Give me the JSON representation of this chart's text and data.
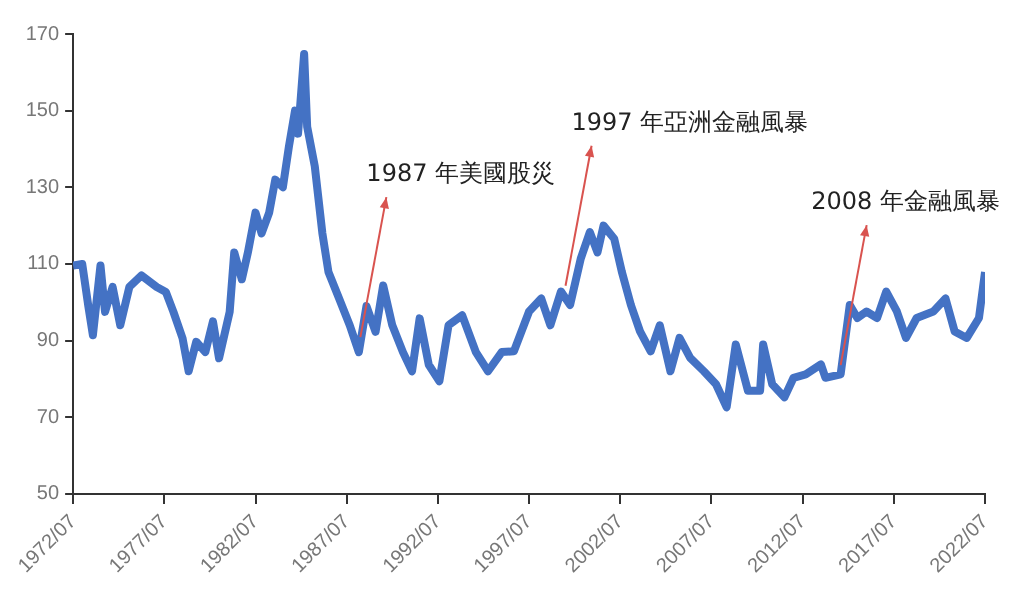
{
  "chart_data": {
    "type": "line",
    "x": [
      "1972-07",
      "1973-01",
      "1973-05",
      "1973-08",
      "1974-01",
      "1974-04",
      "1974-09",
      "1975-02",
      "1975-08",
      "1976-04",
      "1977-02",
      "1977-08",
      "1978-01",
      "1978-07",
      "1978-11",
      "1979-04",
      "1979-10",
      "1980-03",
      "1980-07",
      "1981-02",
      "1981-05",
      "1981-10",
      "1982-02",
      "1982-07",
      "1982-11",
      "1983-04",
      "1983-08",
      "1984-01",
      "1984-05",
      "1984-09",
      "1984-11",
      "1985-03",
      "1985-05",
      "1985-10",
      "1986-03",
      "1986-07",
      "1987-02",
      "1987-09",
      "1988-03",
      "1988-08",
      "1989-02",
      "1989-07",
      "1990-01",
      "1990-08",
      "1991-02",
      "1991-07",
      "1992-01",
      "1992-08",
      "1993-02",
      "1993-11",
      "1994-08",
      "1995-04",
      "1996-01",
      "1996-09",
      "1997-07",
      "1998-03",
      "1998-09",
      "1999-04",
      "1999-10",
      "2000-05",
      "2000-11",
      "2001-04",
      "2001-08",
      "2002-03",
      "2002-08",
      "2003-02",
      "2003-08",
      "2004-03",
      "2004-09",
      "2005-04",
      "2005-10",
      "2006-05",
      "2007-02",
      "2007-10",
      "2008-05",
      "2008-11",
      "2009-07",
      "2010-03",
      "2010-05",
      "2010-11",
      "2011-07",
      "2012-01",
      "2012-09",
      "2013-07",
      "2013-10",
      "2014-08",
      "2015-02",
      "2015-07",
      "2016-01",
      "2016-08",
      "2017-02",
      "2017-09",
      "2018-03",
      "2018-10",
      "2019-09",
      "2020-05",
      "2020-11",
      "2021-07",
      "2022-03",
      "2022-07"
    ],
    "series": [
      {
        "color": "#4472c4",
        "values": [
          109.6,
          110,
          99,
          91.4,
          109.6,
          97.5,
          104,
          94,
          104,
          107,
          104,
          102.7,
          97.5,
          90.6,
          82,
          89.7,
          87,
          95,
          85.4,
          97.5,
          113,
          106,
          113,
          123.4,
          118,
          123.4,
          132,
          130,
          140.7,
          150,
          144,
          164.8,
          145.8,
          135.5,
          118,
          107.9,
          101,
          94,
          87,
          99,
          92.3,
          104.4,
          94,
          87,
          82,
          95.8,
          83.7,
          79.4,
          94,
          96.6,
          87,
          82,
          87,
          87.2,
          97.6,
          101,
          94,
          102.8,
          99.3,
          111.4,
          118.3,
          113,
          120,
          116.6,
          108,
          99.3,
          92.4,
          87.2,
          94,
          82,
          90.7,
          85.5,
          82,
          78.6,
          72.6,
          89,
          76.9,
          76.9,
          89,
          78.6,
          75.2,
          80.3,
          81.2,
          83.8,
          80.3,
          81.2,
          99.3,
          95.9,
          97.6,
          95.9,
          102.8,
          97.6,
          90.7,
          95.9,
          97.6,
          101,
          92.4,
          90.7,
          95.9,
          107.9
        ]
      }
    ],
    "xlim": [
      "1972-07",
      "2022-07"
    ],
    "xticks": [
      {
        "value": "1972-07",
        "label": "1972/07"
      },
      {
        "value": "1977-07",
        "label": "1977/07"
      },
      {
        "value": "1982-07",
        "label": "1982/07"
      },
      {
        "value": "1987-07",
        "label": "1987/07"
      },
      {
        "value": "1992-07",
        "label": "1992/07"
      },
      {
        "value": "1997-07",
        "label": "1997/07"
      },
      {
        "value": "2002-07",
        "label": "2002/07"
      },
      {
        "value": "2007-07",
        "label": "2007/07"
      },
      {
        "value": "2012-07",
        "label": "2012/07"
      },
      {
        "value": "2017-07",
        "label": "2017/07"
      },
      {
        "value": "2022-07",
        "label": "2022/07"
      }
    ],
    "ylim": [
      50,
      170
    ],
    "yticks": [
      50,
      70,
      90,
      110,
      130,
      150,
      170
    ],
    "marker": "none",
    "line_style": "solid",
    "annotations": [
      {
        "text": "1987 年美國股災",
        "x": "1988-04",
        "y": 90.9
      },
      {
        "text": "1997 年亞洲金融風暴",
        "x": "1999-07",
        "y": 104.3
      },
      {
        "text": "2008 年金融風暴",
        "x": "2014-08",
        "y": 83.6
      }
    ]
  }
}
